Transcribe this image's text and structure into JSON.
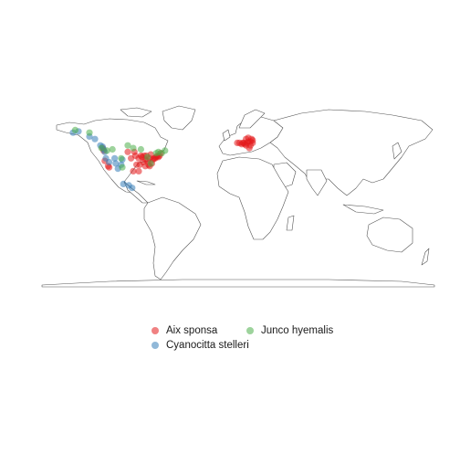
{
  "map": {
    "colors": {
      "land_fill": "#ffffff",
      "land_stroke": "#555555",
      "Aix sponsa": "#e41a1c",
      "Cyanocitta stelleri": "#377eb8",
      "Junco hyemalis": "#4daf4a"
    }
  },
  "legend": {
    "items": [
      {
        "label": "Aix sponsa",
        "color": "#e41a1c"
      },
      {
        "label": "Junco hyemalis",
        "color": "#4daf4a"
      },
      {
        "label": "Cyanocitta stelleri",
        "color": "#377eb8"
      }
    ]
  },
  "chart_data": {
    "type": "scatter",
    "xlim": [
      -180,
      180
    ],
    "ylim": [
      -60,
      85
    ],
    "series": [
      {
        "name": "Aix sponsa",
        "points": [
          [
            -123,
            48
          ],
          [
            -122,
            46
          ],
          [
            -121,
            38
          ],
          [
            -118,
            34
          ],
          [
            -117,
            33
          ],
          [
            -100,
            45
          ],
          [
            -97,
            40
          ],
          [
            -94,
            45
          ],
          [
            -93,
            42
          ],
          [
            -90,
            40
          ],
          [
            -88,
            42
          ],
          [
            -87,
            41
          ],
          [
            -85,
            42
          ],
          [
            -84,
            39
          ],
          [
            -84,
            34
          ],
          [
            -83,
            42
          ],
          [
            -82,
            38
          ],
          [
            -81,
            35
          ],
          [
            -80,
            40
          ],
          [
            -80,
            34
          ],
          [
            -79,
            43
          ],
          [
            -78,
            36
          ],
          [
            -77,
            39
          ],
          [
            -76,
            40
          ],
          [
            -75,
            40
          ],
          [
            -74,
            41
          ],
          [
            -73,
            42
          ],
          [
            -72,
            41
          ],
          [
            -71,
            42
          ],
          [
            -70,
            44
          ],
          [
            -90,
            30
          ],
          [
            -95,
            30
          ],
          [
            -86,
            37
          ],
          [
            -89,
            35
          ],
          [
            -92,
            35
          ],
          [
            0,
            52
          ],
          [
            2,
            52
          ],
          [
            4,
            51
          ],
          [
            5,
            52
          ],
          [
            6,
            52
          ],
          [
            7,
            51
          ],
          [
            8,
            50
          ],
          [
            9,
            52
          ],
          [
            10,
            53
          ],
          [
            12,
            53
          ],
          [
            13,
            55
          ],
          [
            8,
            55
          ],
          [
            10,
            56
          ],
          [
            14,
            54
          ],
          [
            11,
            48
          ],
          [
            14,
            52
          ],
          [
            12,
            50
          ]
        ]
      },
      {
        "name": "Cyanocitta stelleri",
        "points": [
          [
            -150,
            60
          ],
          [
            -145,
            61
          ],
          [
            -135,
            57
          ],
          [
            -130,
            55
          ],
          [
            -125,
            50
          ],
          [
            -123,
            49
          ],
          [
            -122,
            47
          ],
          [
            -121,
            45
          ],
          [
            -120,
            40
          ],
          [
            -117,
            37
          ],
          [
            -112,
            40
          ],
          [
            -111,
            36
          ],
          [
            -109,
            32
          ],
          [
            -106,
            35
          ],
          [
            -105,
            39
          ],
          [
            -104,
            20
          ],
          [
            -99,
            19
          ],
          [
            -96,
            17
          ]
        ]
      },
      {
        "name": "Junco hyemalis",
        "points": [
          [
            -148,
            62
          ],
          [
            -135,
            60
          ],
          [
            -124,
            48
          ],
          [
            -119,
            46
          ],
          [
            -114,
            47
          ],
          [
            -106,
            40
          ],
          [
            -105,
            33
          ],
          [
            -100,
            50
          ],
          [
            -95,
            48
          ],
          [
            -88,
            47
          ],
          [
            -82,
            41
          ],
          [
            -79,
            36
          ],
          [
            -74,
            44
          ],
          [
            -72,
            45
          ],
          [
            -66,
            46
          ],
          [
            -69,
            44
          ]
        ]
      }
    ]
  }
}
